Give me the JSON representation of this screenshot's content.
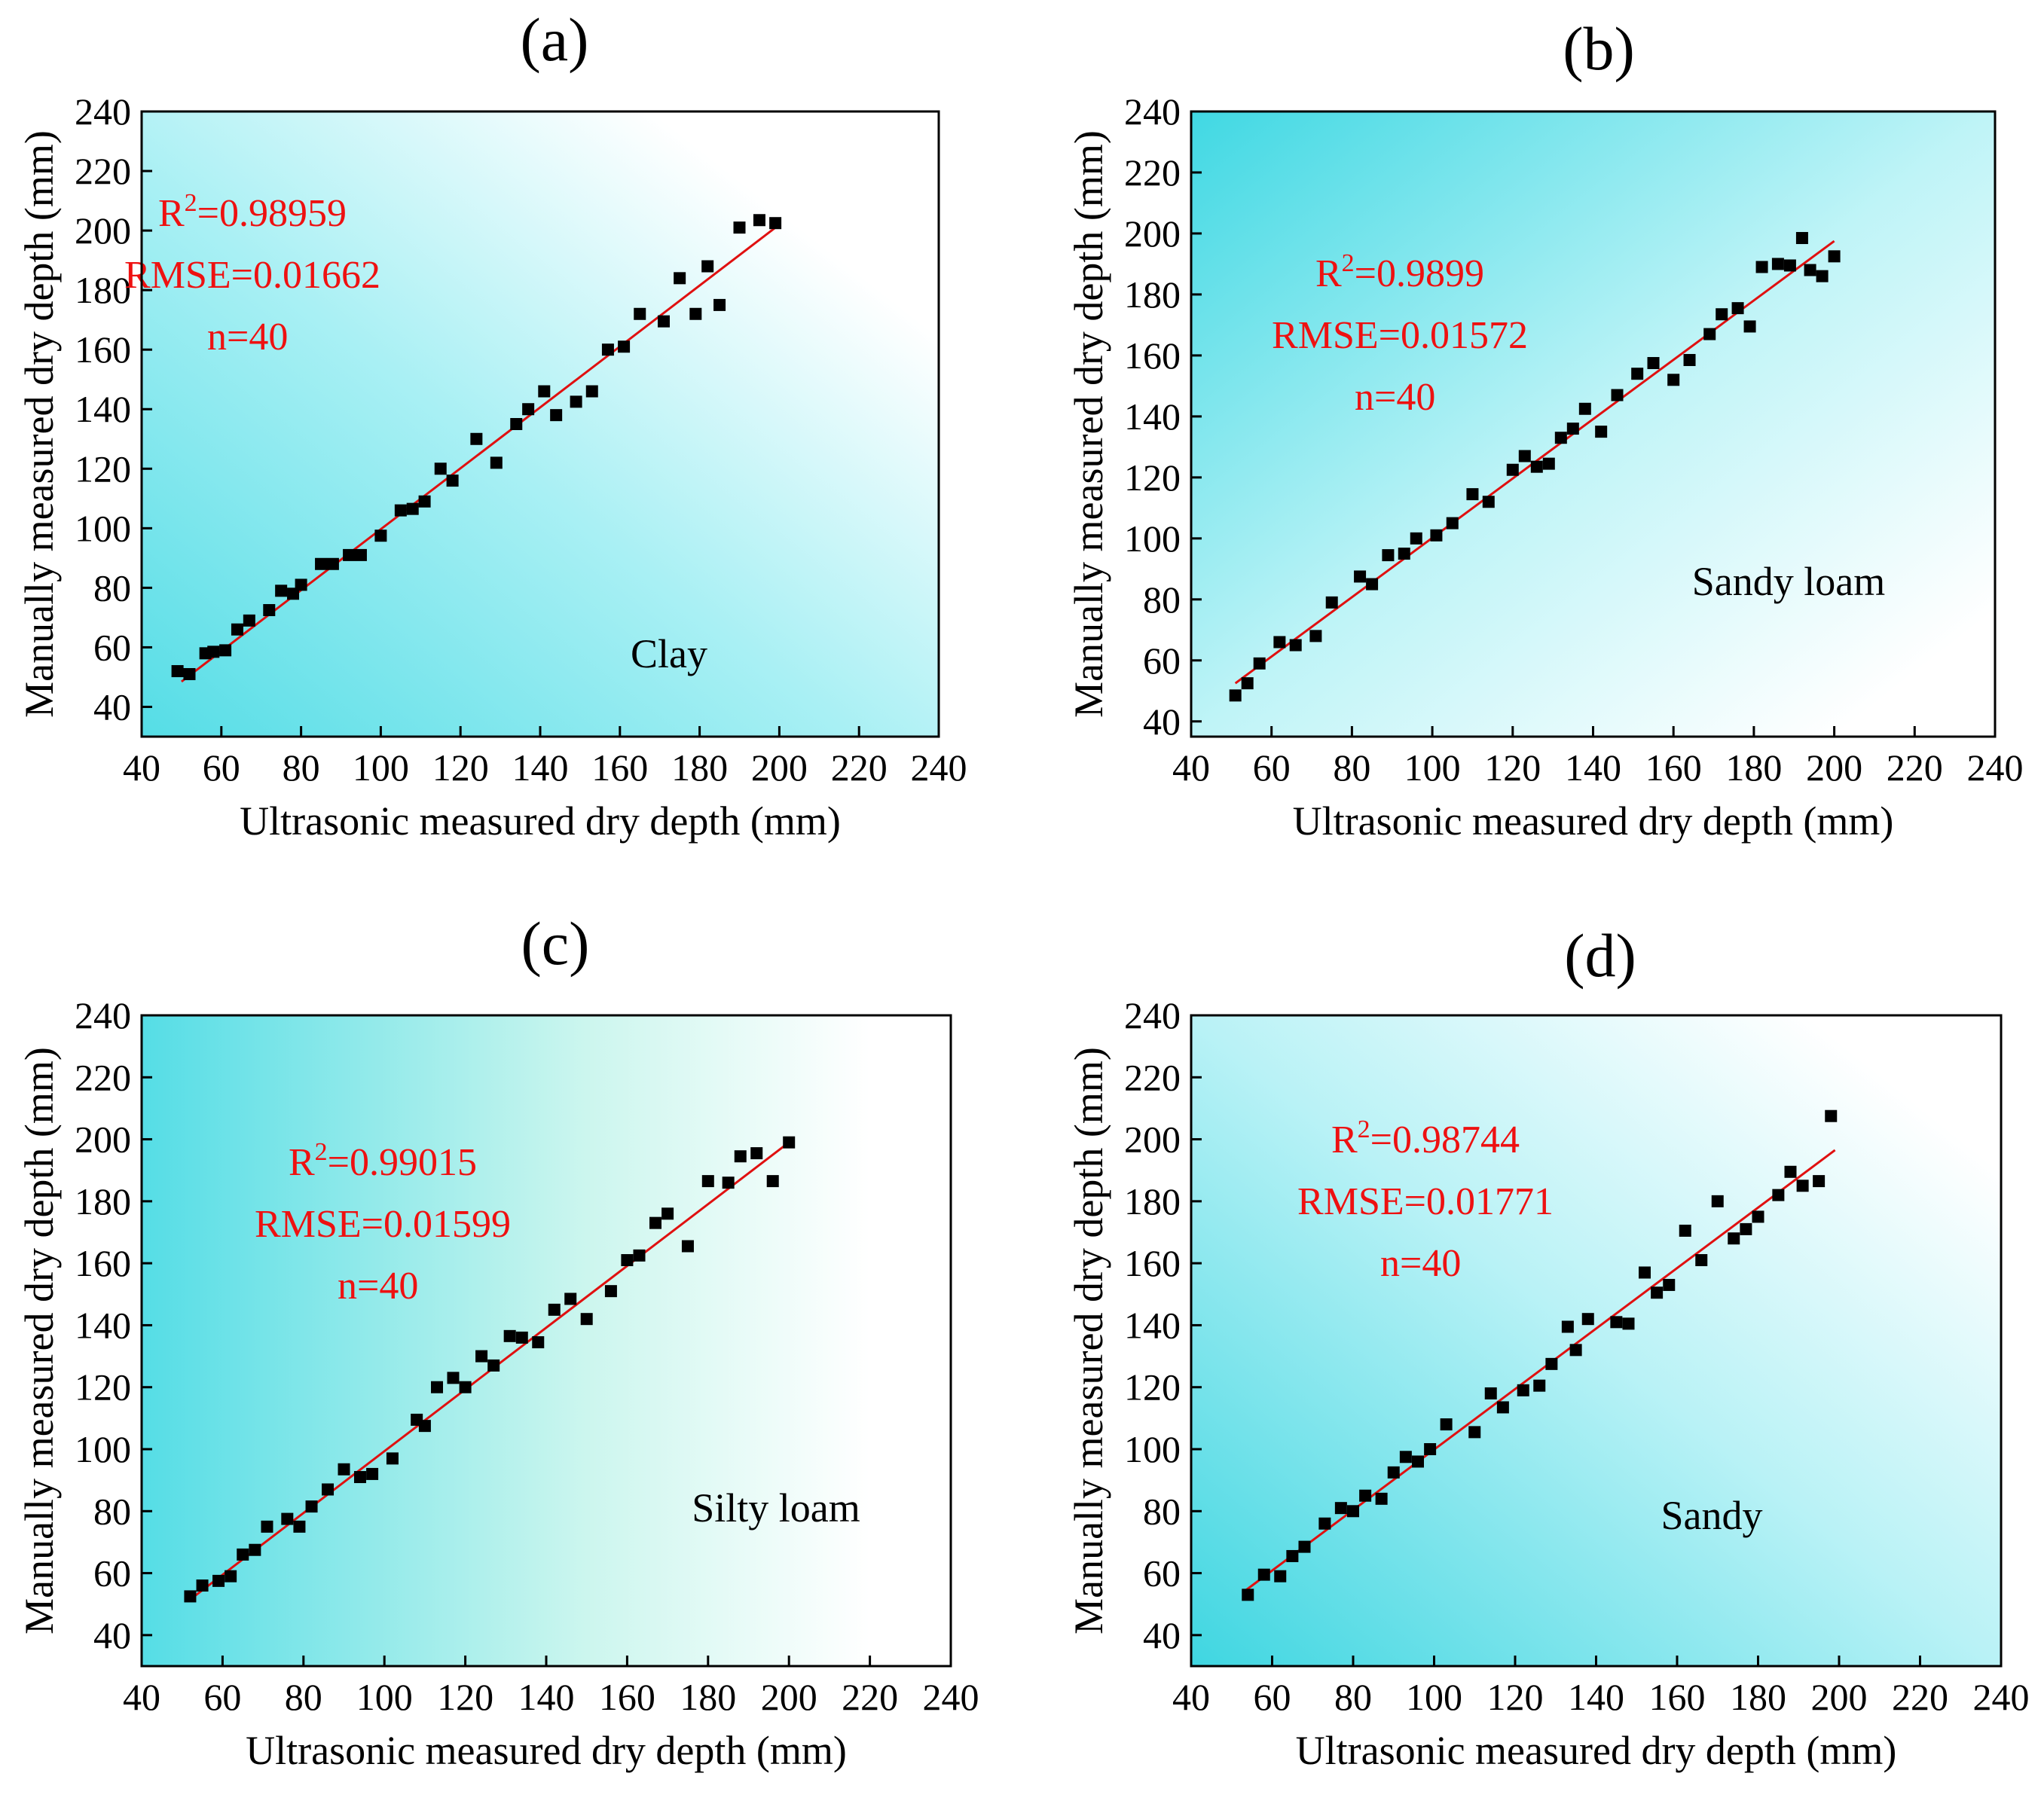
{
  "figure": {
    "colors": {
      "fit_line": "#e01010",
      "stats_text": "#ee1111",
      "points": "#000000",
      "plot_bg_left": "#66e0e8",
      "plot_bg_right": "#ffffff"
    }
  },
  "chart_data": [
    {
      "type": "scatter",
      "panel_label": "(a)",
      "soil": "Clay",
      "xlabel": "Ultrasonic measured dry depth (mm)",
      "ylabel": "Manually measured dry depth (mm)",
      "xlim": [
        40,
        240
      ],
      "ylim": [
        30,
        240
      ],
      "xticks": [
        "40",
        "60",
        "80",
        "100",
        "120",
        "140",
        "160",
        "180",
        "200",
        "220",
        "240"
      ],
      "yticks": [
        "40",
        "60",
        "80",
        "100",
        "120",
        "140",
        "160",
        "180",
        "200",
        "220",
        "240"
      ],
      "stats": {
        "r2_prefix": "R",
        "r2_sup": "2",
        "r2_value": "=0.98959",
        "rmse": "RMSE=0.01662",
        "n": "n=40"
      },
      "fit": {
        "x": [
          50,
          200
        ],
        "y": [
          48.5,
          202
        ]
      },
      "points": [
        [
          49,
          52
        ],
        [
          52,
          51
        ],
        [
          56,
          58
        ],
        [
          58,
          58.5
        ],
        [
          61,
          59
        ],
        [
          64,
          66
        ],
        [
          67,
          69
        ],
        [
          72,
          72.5
        ],
        [
          75,
          79
        ],
        [
          78,
          78
        ],
        [
          80,
          81
        ],
        [
          85,
          88
        ],
        [
          88,
          88
        ],
        [
          92,
          91
        ],
        [
          95,
          91
        ],
        [
          100,
          97.5
        ],
        [
          105,
          106
        ],
        [
          108,
          106.5
        ],
        [
          111,
          109
        ],
        [
          115,
          120
        ],
        [
          118,
          116
        ],
        [
          124,
          130
        ],
        [
          129,
          122
        ],
        [
          134,
          135
        ],
        [
          137,
          140
        ],
        [
          141,
          146
        ],
        [
          144,
          138
        ],
        [
          149,
          142.5
        ],
        [
          153,
          146
        ],
        [
          157,
          160
        ],
        [
          161,
          161
        ],
        [
          165,
          172
        ],
        [
          171,
          169.5
        ],
        [
          175,
          184
        ],
        [
          179,
          172
        ],
        [
          182,
          188
        ],
        [
          185,
          175
        ],
        [
          190,
          201
        ],
        [
          195,
          203.5
        ],
        [
          199,
          202.5
        ]
      ]
    },
    {
      "type": "scatter",
      "panel_label": "(b)",
      "soil": "Sandy loam",
      "xlabel": "Ultrasonic measured dry depth (mm)",
      "ylabel": "Manually measured dry depth (mm)",
      "xlim": [
        40,
        240
      ],
      "ylim": [
        35,
        240
      ],
      "xticks": [
        "40",
        "60",
        "80",
        "100",
        "120",
        "140",
        "160",
        "180",
        "200",
        "220",
        "240"
      ],
      "yticks": [
        "40",
        "60",
        "80",
        "100",
        "120",
        "140",
        "160",
        "180",
        "200",
        "220",
        "240"
      ],
      "stats": {
        "r2_prefix": "R",
        "r2_sup": "2",
        "r2_value": "=0.9899",
        "rmse": "RMSE=0.01572",
        "n": "n=40"
      },
      "fit": {
        "x": [
          51,
          200
        ],
        "y": [
          52.5,
          197.5
        ]
      },
      "points": [
        [
          51,
          48.5
        ],
        [
          54,
          52.5
        ],
        [
          57,
          59
        ],
        [
          62,
          66
        ],
        [
          66,
          65
        ],
        [
          71,
          68
        ],
        [
          75,
          79
        ],
        [
          82,
          87.5
        ],
        [
          85,
          85
        ],
        [
          89,
          94.5
        ],
        [
          93,
          95
        ],
        [
          96,
          100
        ],
        [
          101,
          101
        ],
        [
          105,
          105
        ],
        [
          110,
          114.5
        ],
        [
          114,
          112
        ],
        [
          120,
          122.5
        ],
        [
          123,
          127
        ],
        [
          126,
          123.5
        ],
        [
          129,
          124.5
        ],
        [
          132,
          133
        ],
        [
          135,
          136
        ],
        [
          138,
          142.5
        ],
        [
          142,
          135
        ],
        [
          146,
          147
        ],
        [
          151,
          154
        ],
        [
          155,
          157.5
        ],
        [
          160,
          152
        ],
        [
          164,
          158.5
        ],
        [
          169,
          167
        ],
        [
          172,
          173.5
        ],
        [
          176,
          175.5
        ],
        [
          179,
          169.5
        ],
        [
          182,
          189
        ],
        [
          186,
          190
        ],
        [
          189,
          189.5
        ],
        [
          192,
          198.5
        ],
        [
          194,
          188
        ],
        [
          197,
          186
        ],
        [
          200,
          192.5
        ]
      ]
    },
    {
      "type": "scatter",
      "panel_label": "(c)",
      "soil": "Silty loam",
      "xlabel": "Ultrasonic measured dry depth (mm)",
      "ylabel": "Manually measured dry depth (mm)",
      "xlim": [
        40,
        240
      ],
      "ylim": [
        30,
        240
      ],
      "xticks": [
        "40",
        "60",
        "80",
        "100",
        "120",
        "140",
        "160",
        "180",
        "200",
        "220",
        "240"
      ],
      "yticks": [
        "40",
        "60",
        "80",
        "100",
        "120",
        "140",
        "160",
        "180",
        "200",
        "220",
        "240"
      ],
      "stats": {
        "r2_prefix": "R",
        "r2_sup": "2",
        "r2_value": "=0.99015",
        "rmse": "RMSE=0.01599",
        "n": "n=40"
      },
      "fit": {
        "x": [
          52,
          201
        ],
        "y": [
          51.5,
          200
        ]
      },
      "points": [
        [
          52,
          52.5
        ],
        [
          55,
          56
        ],
        [
          59,
          57.5
        ],
        [
          62,
          59
        ],
        [
          65,
          66
        ],
        [
          68,
          67.5
        ],
        [
          71,
          75
        ],
        [
          76,
          77.5
        ],
        [
          79,
          75
        ],
        [
          82,
          81.5
        ],
        [
          86,
          87
        ],
        [
          90,
          93.5
        ],
        [
          94,
          91
        ],
        [
          97,
          92
        ],
        [
          102,
          97
        ],
        [
          108,
          109.5
        ],
        [
          110,
          107.5
        ],
        [
          113,
          120
        ],
        [
          117,
          123
        ],
        [
          120,
          120
        ],
        [
          124,
          130
        ],
        [
          127,
          127
        ],
        [
          131,
          136.5
        ],
        [
          134,
          136
        ],
        [
          138,
          134.5
        ],
        [
          142,
          145
        ],
        [
          146,
          148.5
        ],
        [
          150,
          142
        ],
        [
          156,
          151
        ],
        [
          160,
          161
        ],
        [
          163,
          162.5
        ],
        [
          167,
          173
        ],
        [
          170,
          176
        ],
        [
          175,
          165.5
        ],
        [
          180,
          186.5
        ],
        [
          185,
          186
        ],
        [
          188,
          194.5
        ],
        [
          192,
          195.5
        ],
        [
          196,
          186.5
        ],
        [
          200,
          199
        ]
      ]
    },
    {
      "type": "scatter",
      "panel_label": "(d)",
      "soil": "Sandy",
      "xlabel": "Ultrasonic measured dry depth (mm)",
      "ylabel": "Manually measured dry depth (mm)",
      "xlim": [
        40,
        240
      ],
      "ylim": [
        30,
        240
      ],
      "xticks": [
        "40",
        "60",
        "80",
        "100",
        "120",
        "140",
        "160",
        "180",
        "200",
        "220",
        "240"
      ],
      "yticks": [
        "40",
        "60",
        "80",
        "100",
        "120",
        "140",
        "160",
        "180",
        "200",
        "220",
        "240"
      ],
      "stats": {
        "r2_prefix": "R",
        "r2_sup": "2",
        "r2_value": "=0.98744",
        "rmse": "RMSE=0.01771",
        "n": "n=40"
      },
      "fit": {
        "x": [
          53,
          199
        ],
        "y": [
          54,
          196.5
        ]
      },
      "points": [
        [
          54,
          53
        ],
        [
          58,
          59.5
        ],
        [
          62,
          59
        ],
        [
          65,
          65.5
        ],
        [
          68,
          68.5
        ],
        [
          73,
          76
        ],
        [
          77,
          81
        ],
        [
          80,
          80
        ],
        [
          83,
          85
        ],
        [
          87,
          84
        ],
        [
          90,
          92.5
        ],
        [
          93,
          97.5
        ],
        [
          96,
          96
        ],
        [
          99,
          100
        ],
        [
          103,
          108
        ],
        [
          110,
          105.5
        ],
        [
          114,
          118
        ],
        [
          117,
          113.5
        ],
        [
          122,
          119
        ],
        [
          126,
          120.5
        ],
        [
          129,
          127.5
        ],
        [
          133,
          139.5
        ],
        [
          135,
          132
        ],
        [
          138,
          142
        ],
        [
          145,
          141
        ],
        [
          148,
          140.5
        ],
        [
          152,
          157
        ],
        [
          155,
          150.5
        ],
        [
          158,
          153
        ],
        [
          162,
          170.5
        ],
        [
          166,
          161
        ],
        [
          170,
          180
        ],
        [
          174,
          168
        ],
        [
          177,
          171
        ],
        [
          180,
          175
        ],
        [
          185,
          182
        ],
        [
          188,
          189.5
        ],
        [
          191,
          185
        ],
        [
          195,
          186.5
        ],
        [
          198,
          207.5
        ]
      ]
    }
  ]
}
